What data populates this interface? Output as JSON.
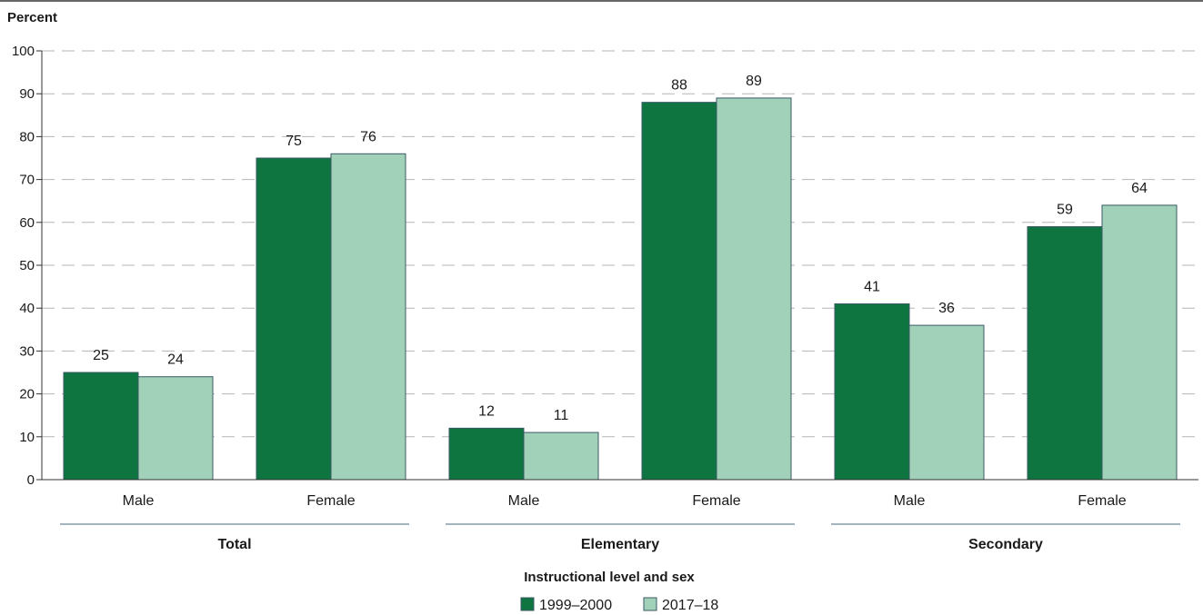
{
  "chart_data": {
    "type": "bar",
    "ylabel": "Percent",
    "xlabel": "Instructional level and sex",
    "ylim": [
      0,
      100
    ],
    "yticks": [
      0,
      10,
      20,
      30,
      40,
      50,
      60,
      70,
      80,
      90,
      100
    ],
    "grid": true,
    "legend_position": "bottom-center",
    "groups": [
      "Total",
      "Elementary",
      "Secondary"
    ],
    "categories": [
      "Male",
      "Female",
      "Male",
      "Female",
      "Male",
      "Female"
    ],
    "series": [
      {
        "name": "1999–2000",
        "color": "#0f7540",
        "values": [
          25,
          75,
          12,
          88,
          41,
          59
        ]
      },
      {
        "name": "2017–18",
        "color": "#a1d1b8",
        "values": [
          24,
          76,
          11,
          89,
          36,
          64
        ]
      }
    ]
  }
}
